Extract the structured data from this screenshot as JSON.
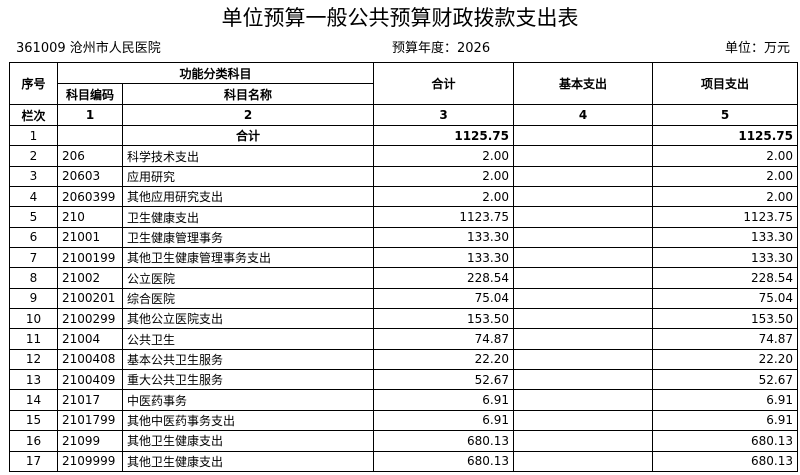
{
  "title": "单位预算一般公共预算财政拨款支出表",
  "unit_name": "361009 沧州市人民医院",
  "budget_year": "预算年度：2026",
  "unit": "单位：万元",
  "headers": {
    "seq": "序号",
    "func_group": "功能分类科目",
    "code": "科目编码",
    "name": "科目名称",
    "total": "合计",
    "basic": "基本支出",
    "project": "项目支出",
    "col_row": "栏次",
    "c1": "1",
    "c2": "2",
    "c3": "3",
    "c4": "4",
    "c5": "5"
  },
  "rows": [
    {
      "seq": "1",
      "code": "",
      "name": "合计",
      "total": "1125.75",
      "basic": "",
      "project": "1125.75"
    },
    {
      "seq": "2",
      "code": "206",
      "name": "科学技术支出",
      "total": "2.00",
      "basic": "",
      "project": "2.00"
    },
    {
      "seq": "3",
      "code": "20603",
      "name": "应用研究",
      "total": "2.00",
      "basic": "",
      "project": "2.00"
    },
    {
      "seq": "4",
      "code": "2060399",
      "name": "其他应用研究支出",
      "total": "2.00",
      "basic": "",
      "project": "2.00"
    },
    {
      "seq": "5",
      "code": "210",
      "name": "卫生健康支出",
      "total": "1123.75",
      "basic": "",
      "project": "1123.75"
    },
    {
      "seq": "6",
      "code": "21001",
      "name": "卫生健康管理事务",
      "total": "133.30",
      "basic": "",
      "project": "133.30"
    },
    {
      "seq": "7",
      "code": "2100199",
      "name": "其他卫生健康管理事务支出",
      "total": "133.30",
      "basic": "",
      "project": "133.30"
    },
    {
      "seq": "8",
      "code": "21002",
      "name": "公立医院",
      "total": "228.54",
      "basic": "",
      "project": "228.54"
    },
    {
      "seq": "9",
      "code": "2100201",
      "name": "综合医院",
      "total": "75.04",
      "basic": "",
      "project": "75.04"
    },
    {
      "seq": "10",
      "code": "2100299",
      "name": "其他公立医院支出",
      "total": "153.50",
      "basic": "",
      "project": "153.50"
    },
    {
      "seq": "11",
      "code": "21004",
      "name": "公共卫生",
      "total": "74.87",
      "basic": "",
      "project": "74.87"
    },
    {
      "seq": "12",
      "code": "2100408",
      "name": "基本公共卫生服务",
      "total": "22.20",
      "basic": "",
      "project": "22.20"
    },
    {
      "seq": "13",
      "code": "2100409",
      "name": "重大公共卫生服务",
      "total": "52.67",
      "basic": "",
      "project": "52.67"
    },
    {
      "seq": "14",
      "code": "21017",
      "name": "中医药事务",
      "total": "6.91",
      "basic": "",
      "project": "6.91"
    },
    {
      "seq": "15",
      "code": "2101799",
      "name": "其他中医药事务支出",
      "total": "6.91",
      "basic": "",
      "project": "6.91"
    },
    {
      "seq": "16",
      "code": "21099",
      "name": "其他卫生健康支出",
      "total": "680.13",
      "basic": "",
      "project": "680.13"
    },
    {
      "seq": "17",
      "code": "2109999",
      "name": "其他卫生健康支出",
      "total": "680.13",
      "basic": "",
      "project": "680.13"
    }
  ]
}
